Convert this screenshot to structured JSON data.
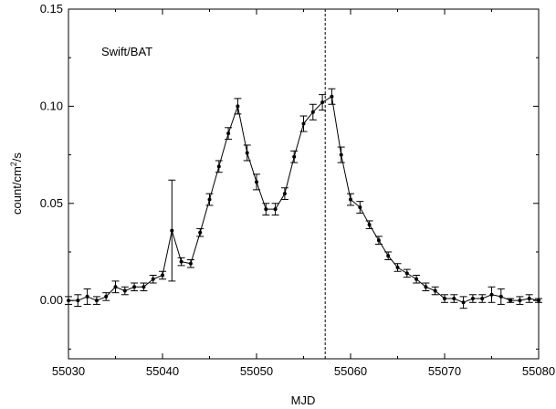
{
  "chart_data": {
    "type": "scatter",
    "annotation": "Swift/BAT",
    "xlabel": "MJD",
    "ylabel_main": "count/cm",
    "ylabel_sup": "2",
    "ylabel_tail": "/s",
    "xlim": [
      55030,
      55080
    ],
    "ylim": [
      -0.03,
      0.15
    ],
    "xticks": [
      55030,
      55040,
      55050,
      55060,
      55070,
      55080
    ],
    "xtick_labels": [
      "55030",
      "55040",
      "55050",
      "55060",
      "55070",
      "55080"
    ],
    "yticks": [
      0.0,
      0.05,
      0.1,
      0.15
    ],
    "ytick_labels": [
      "0.00",
      "0.05",
      "0.10",
      "0.15"
    ],
    "vline_x": 55057.3,
    "series": [
      {
        "x": [
          55030,
          55031,
          55032,
          55033,
          55034,
          55035,
          55036,
          55037,
          55038,
          55039,
          55040,
          55041,
          55042,
          55043,
          55044,
          55045,
          55046,
          55047,
          55048,
          55049,
          55050,
          55051,
          55052,
          55053,
          55054,
          55055,
          55056,
          55057,
          55058,
          55059,
          55060,
          55061,
          55062,
          55063,
          55064,
          55065,
          55066,
          55067,
          55068,
          55069,
          55070,
          55071,
          55072,
          55073,
          55074,
          55075,
          55076,
          55077,
          55078,
          55079,
          55080
        ],
        "y": [
          0.0,
          0.0,
          0.002,
          0.0,
          0.002,
          0.007,
          0.005,
          0.007,
          0.007,
          0.011,
          0.013,
          0.036,
          0.02,
          0.019,
          0.035,
          0.052,
          0.069,
          0.086,
          0.1,
          0.076,
          0.061,
          0.047,
          0.047,
          0.055,
          0.074,
          0.091,
          0.097,
          0.102,
          0.105,
          0.075,
          0.052,
          0.048,
          0.039,
          0.031,
          0.023,
          0.017,
          0.014,
          0.011,
          0.007,
          0.005,
          0.001,
          0.001,
          -0.001,
          0.001,
          0.001,
          0.003,
          0.002,
          0.0,
          0.0,
          0.001,
          0.0
        ],
        "yerr": [
          0.002,
          0.003,
          0.004,
          0.002,
          0.002,
          0.003,
          0.002,
          0.002,
          0.002,
          0.002,
          0.002,
          0.026,
          0.002,
          0.002,
          0.002,
          0.003,
          0.003,
          0.003,
          0.004,
          0.004,
          0.004,
          0.003,
          0.003,
          0.003,
          0.003,
          0.004,
          0.004,
          0.004,
          0.004,
          0.004,
          0.003,
          0.003,
          0.002,
          0.002,
          0.002,
          0.002,
          0.002,
          0.002,
          0.002,
          0.002,
          0.002,
          0.002,
          0.003,
          0.002,
          0.002,
          0.004,
          0.004,
          0.001,
          0.002,
          0.002,
          0.001
        ]
      }
    ],
    "grid": false,
    "legend": "none",
    "colors": {
      "line": "#000000",
      "marker": "#000000",
      "vline": "#000000"
    }
  }
}
